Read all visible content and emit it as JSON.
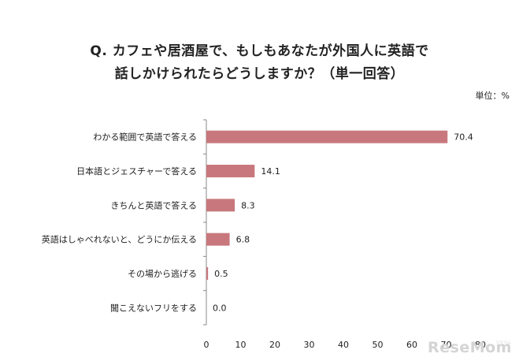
{
  "title_line1": "Q. カフェや居酒屋で、もしもあなたが外国人に英語で",
  "title_line2": "話しかけられたらどうしますか？（単一回答）",
  "unit_label": "単位：%",
  "watermark": {
    "text": "ReseMom",
    "sub": "リセマム"
  },
  "chart_data": {
    "type": "bar",
    "orientation": "horizontal",
    "categories": [
      "わかる範囲で英語で答える",
      "日本語とジェスチャーで答える",
      "きちんと英語で答える",
      "英語はしゃべれないと、どうにか伝える",
      "その場から逃げる",
      "聞こえないフリをする"
    ],
    "values": [
      70.4,
      14.1,
      8.3,
      6.8,
      0.5,
      0.0
    ],
    "data_labels": [
      "70.4",
      "14.1",
      "8.3",
      "6.8",
      "0.5",
      "0.0"
    ],
    "xlim": [
      0,
      80
    ],
    "xticks": [
      0,
      10,
      20,
      30,
      40,
      50,
      60,
      70,
      80
    ],
    "bar_color": "#c8787d",
    "grid": false,
    "legend": "none"
  }
}
